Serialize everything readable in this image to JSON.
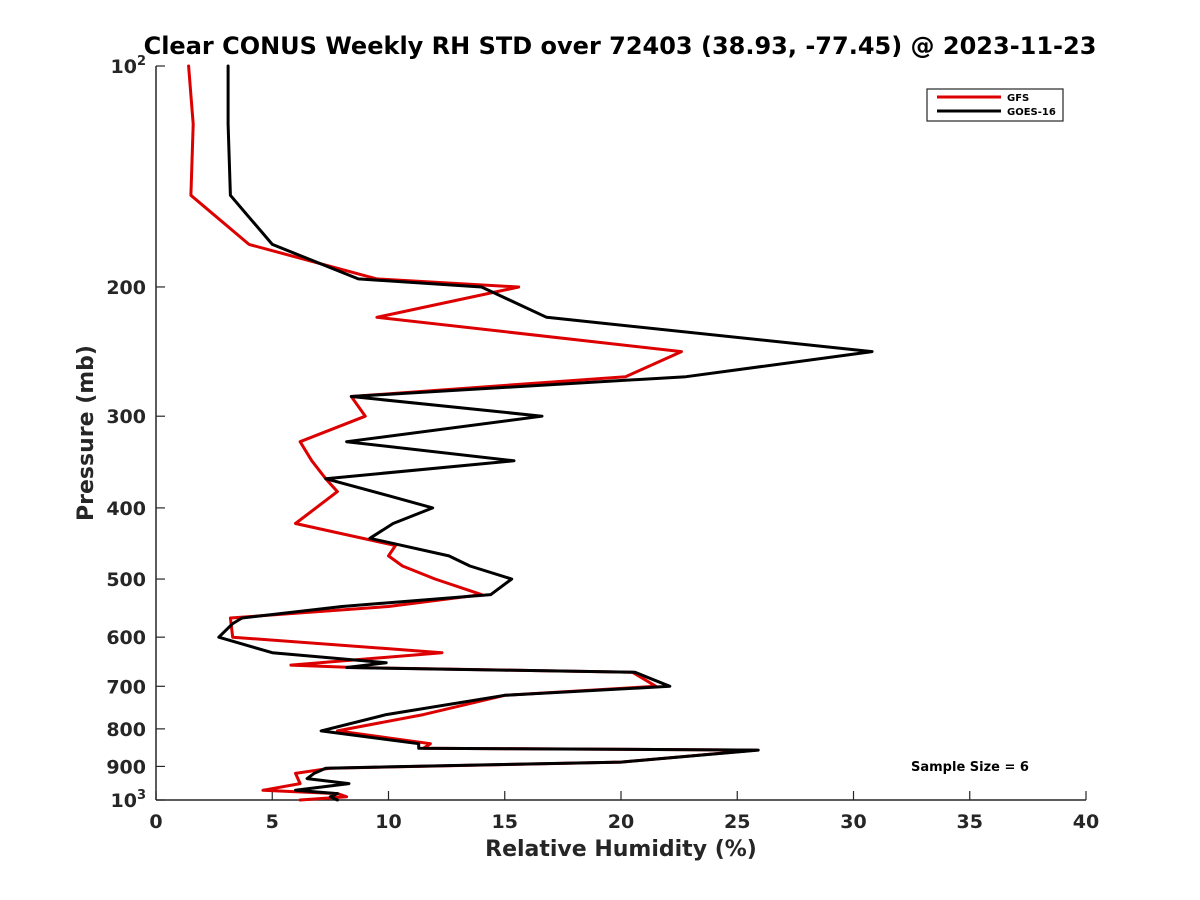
{
  "chart_data": {
    "type": "line",
    "title": "Clear CONUS Weekly RH STD over 72403 (38.93, -77.45) @ 2023-11-23",
    "xlabel": "Relative Humidity (%)",
    "ylabel": "Pressure (mb)",
    "xlim": [
      0,
      40
    ],
    "ylim": [
      100,
      1000
    ],
    "y_scale": "log",
    "y_reversed": true,
    "x_ticks": [
      0,
      5,
      10,
      15,
      20,
      25,
      30,
      35,
      40
    ],
    "x_tick_labels": [
      "0",
      "5",
      "10",
      "15",
      "20",
      "25",
      "30",
      "35",
      "40"
    ],
    "y_ticks": [
      {
        "value": 100,
        "base": "10",
        "exp": "2"
      },
      {
        "value": 200,
        "label": "200"
      },
      {
        "value": 300,
        "label": "300"
      },
      {
        "value": 400,
        "label": "400"
      },
      {
        "value": 500,
        "label": "500"
      },
      {
        "value": 600,
        "label": "600"
      },
      {
        "value": 700,
        "label": "700"
      },
      {
        "value": 800,
        "label": "800"
      },
      {
        "value": 900,
        "label": "900"
      },
      {
        "value": 1000,
        "base": "10",
        "exp": "3"
      }
    ],
    "legend": {
      "placement": "top-right"
    },
    "annotation": "Sample Size = 6",
    "grid": false,
    "series": [
      {
        "name": "GFS",
        "color": "#dd0000",
        "points": [
          [
            1.4,
            100
          ],
          [
            1.6,
            120
          ],
          [
            1.5,
            150
          ],
          [
            4.0,
            175
          ],
          [
            9.5,
            195
          ],
          [
            15.6,
            200
          ],
          [
            9.5,
            220
          ],
          [
            22.6,
            245
          ],
          [
            20.2,
            265
          ],
          [
            8.4,
            282
          ],
          [
            9.0,
            300
          ],
          [
            6.2,
            325
          ],
          [
            6.7,
            345
          ],
          [
            7.3,
            365
          ],
          [
            7.8,
            380
          ],
          [
            6.0,
            420
          ],
          [
            10.3,
            450
          ],
          [
            10.0,
            465
          ],
          [
            10.6,
            480
          ],
          [
            12.0,
            500
          ],
          [
            14.0,
            525
          ],
          [
            10.0,
            545
          ],
          [
            3.2,
            565
          ],
          [
            3.3,
            600
          ],
          [
            12.3,
            630
          ],
          [
            5.8,
            655
          ],
          [
            8.5,
            660
          ],
          [
            20.5,
            670
          ],
          [
            21.5,
            700
          ],
          [
            15.0,
            720
          ],
          [
            11.5,
            765
          ],
          [
            7.8,
            805
          ],
          [
            11.8,
            838
          ],
          [
            11.5,
            850
          ],
          [
            25.8,
            855
          ],
          [
            20.0,
            888
          ],
          [
            7.5,
            905
          ],
          [
            6.0,
            920
          ],
          [
            6.2,
            950
          ],
          [
            4.6,
            970
          ],
          [
            7.8,
            980
          ],
          [
            8.2,
            990
          ],
          [
            6.2,
            1000
          ]
        ]
      },
      {
        "name": "GOES-16",
        "color": "#000000",
        "points": [
          [
            3.1,
            100
          ],
          [
            3.1,
            120
          ],
          [
            3.2,
            150
          ],
          [
            5.0,
            175
          ],
          [
            8.7,
            195
          ],
          [
            14.0,
            200
          ],
          [
            16.8,
            220
          ],
          [
            30.8,
            245
          ],
          [
            22.8,
            265
          ],
          [
            8.4,
            282
          ],
          [
            16.6,
            300
          ],
          [
            8.2,
            325
          ],
          [
            15.4,
            345
          ],
          [
            7.3,
            365
          ],
          [
            10.0,
            385
          ],
          [
            11.9,
            400
          ],
          [
            10.2,
            420
          ],
          [
            9.2,
            440
          ],
          [
            12.6,
            465
          ],
          [
            13.5,
            480
          ],
          [
            15.3,
            500
          ],
          [
            14.4,
            525
          ],
          [
            8.0,
            545
          ],
          [
            3.7,
            565
          ],
          [
            3.3,
            575
          ],
          [
            2.7,
            600
          ],
          [
            5.0,
            630
          ],
          [
            9.9,
            650
          ],
          [
            8.2,
            660
          ],
          [
            20.6,
            670
          ],
          [
            22.1,
            700
          ],
          [
            15.0,
            720
          ],
          [
            9.9,
            765
          ],
          [
            7.1,
            805
          ],
          [
            11.3,
            838
          ],
          [
            11.3,
            850
          ],
          [
            25.9,
            855
          ],
          [
            20.0,
            888
          ],
          [
            7.3,
            905
          ],
          [
            6.8,
            920
          ],
          [
            6.5,
            935
          ],
          [
            8.3,
            950
          ],
          [
            6.0,
            970
          ],
          [
            7.8,
            980
          ],
          [
            7.5,
            990
          ],
          [
            7.8,
            1000
          ]
        ]
      }
    ]
  }
}
